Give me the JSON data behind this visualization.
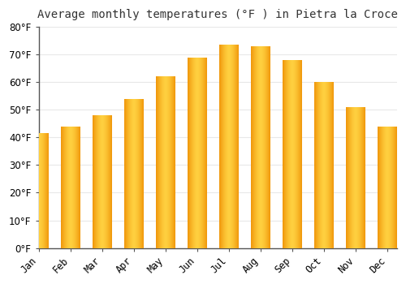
{
  "title": "Average monthly temperatures (°F ) in Pietra la Croce",
  "months": [
    "Jan",
    "Feb",
    "Mar",
    "Apr",
    "May",
    "Jun",
    "Jul",
    "Aug",
    "Sep",
    "Oct",
    "Nov",
    "Dec"
  ],
  "values": [
    41.5,
    44.0,
    48.0,
    54.0,
    62.0,
    69.0,
    73.5,
    73.0,
    68.0,
    60.0,
    51.0,
    44.0
  ],
  "bar_color_center": "#FFD040",
  "bar_color_edge": "#F0960A",
  "background_color": "#FFFFFF",
  "grid_color": "#E8E8E8",
  "ylim": [
    0,
    80
  ],
  "yticks": [
    0,
    10,
    20,
    30,
    40,
    50,
    60,
    70,
    80
  ],
  "title_fontsize": 10,
  "tick_fontsize": 8.5,
  "bar_width": 0.6
}
